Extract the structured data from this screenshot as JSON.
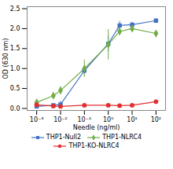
{
  "chart_data": {
    "type": "line",
    "xlabel": "Needle (ng/ml)",
    "ylabel": "OD (630 nm)",
    "log": "x",
    "legend": "bottom",
    "x": [
      0.001,
      0.005,
      0.01,
      0.1,
      1.0,
      3.0,
      10.0,
      100.0
    ],
    "xlim": [
      0.00039810717055349735,
      251.18864315095797
    ],
    "xticks": [
      {
        "value": 0.001,
        "label": "10⁻³"
      },
      {
        "value": 0.01,
        "label": "10⁻²"
      },
      {
        "value": 0.1,
        "label": "10⁻¹"
      },
      {
        "value": 1,
        "label": "10⁰"
      },
      {
        "value": 10,
        "label": "10¹"
      },
      {
        "value": 100,
        "label": "10²"
      }
    ],
    "ylim": [
      -0.05,
      2.55
    ],
    "yticks": [
      {
        "value": 0.0,
        "label": "0.0"
      },
      0.5,
      {
        "value": 1.0,
        "label": "1.0"
      },
      1.5,
      {
        "value": 2.0,
        "label": "2.0"
      },
      2.5
    ],
    "series": [
      {
        "name": "THP1-Null2",
        "color": "#4472C4",
        "marker": "square",
        "values": [
          0.05,
          0.08,
          0.1,
          0.95,
          1.62,
          2.08,
          2.1,
          2.2
        ],
        "errors": [
          0.01,
          0.02,
          0.08,
          0.12,
          0.2,
          0.1,
          0.06,
          0.04
        ]
      },
      {
        "name": "THP1-NLRC4",
        "color": "#70AD47",
        "marker": "diamond",
        "values": [
          0.15,
          0.32,
          0.45,
          1.0,
          1.6,
          1.93,
          2.0,
          1.88
        ],
        "errors": [
          0.03,
          0.05,
          0.1,
          0.22,
          0.38,
          0.1,
          0.08,
          0.05
        ]
      },
      {
        "name": "THP1-KO-NLRC4",
        "color": "#E03030",
        "marker": "circle",
        "values": [
          0.09,
          0.06,
          0.05,
          0.08,
          0.08,
          0.07,
          0.08,
          0.17
        ],
        "errors": [
          0.01,
          0.01,
          0.01,
          0.01,
          0.01,
          0.01,
          0.01,
          0.04
        ]
      }
    ]
  }
}
